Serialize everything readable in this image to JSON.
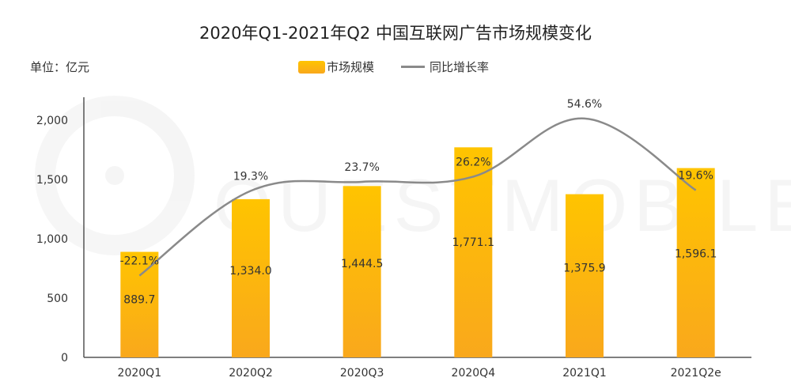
{
  "chart_data": {
    "type": "bar",
    "title": "2020年Q1-2021年Q2 中国互联网广告市场规模变化",
    "unit_label": "单位：亿元",
    "categories": [
      "2020Q1",
      "2020Q2",
      "2020Q3",
      "2020Q4",
      "2021Q1",
      "2021Q2e"
    ],
    "series": [
      {
        "name": "市场规模",
        "kind": "bar",
        "values": [
          889.7,
          1334.0,
          1444.5,
          1771.1,
          1375.9,
          1596.1
        ],
        "labels": [
          "889.7",
          "1,334.0",
          "1,444.5",
          "1,771.1",
          "1,375.9",
          "1,596.1"
        ]
      },
      {
        "name": "同比增长率",
        "kind": "line",
        "values": [
          -22.1,
          19.3,
          23.7,
          26.2,
          54.6,
          19.6
        ],
        "labels": [
          "-22.1%",
          "19.3%",
          "23.7%",
          "26.2%",
          "54.6%",
          "19.6%"
        ]
      }
    ],
    "y_ticks": [
      "0",
      "500",
      "1,000",
      "1,500",
      "2,000"
    ],
    "y_tick_values": [
      0,
      500,
      1000,
      1500,
      2000
    ],
    "ylim": [
      0,
      2000
    ],
    "colors": {
      "bar_top": "#FFC400",
      "bar_bottom": "#F9A81C",
      "line": "#8a8a8a",
      "axis": "#555555"
    }
  },
  "watermark": "QUESTMOBILE"
}
